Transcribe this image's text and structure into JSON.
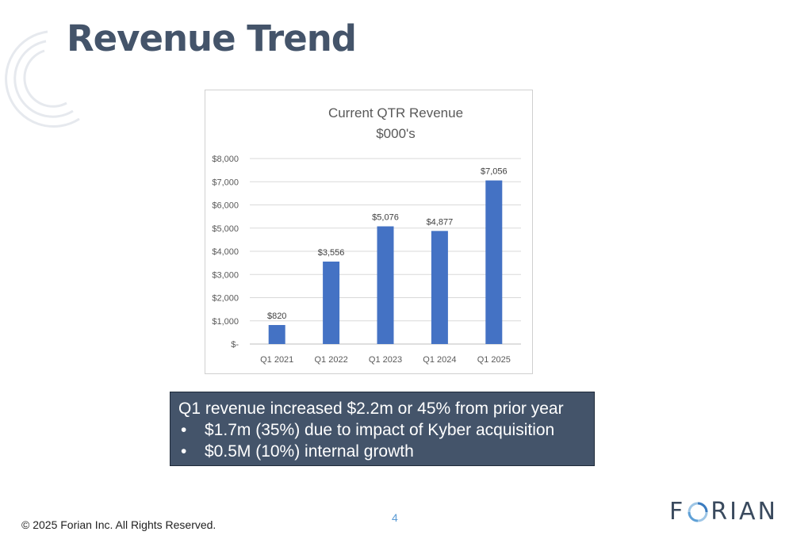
{
  "slide": {
    "title": "Revenue Trend",
    "page_number": "4",
    "copyright": "© 2025 Forian Inc.  All Rights Reserved.",
    "logo": {
      "pre": "F",
      "post": "RIAN"
    }
  },
  "callout": {
    "headline": "Q1 revenue increased $2.2m or 45% from prior year",
    "bullets": [
      "$1.7m (35%) due to impact of Kyber acquisition",
      "$0.5M (10%) internal growth"
    ]
  },
  "colors": {
    "title": "#44546a",
    "bar": "#4472c4",
    "callout_bg": "#44546a",
    "page_number": "#5b9bd5"
  },
  "chart_data": {
    "type": "bar",
    "title_lines": [
      "Current QTR Revenue",
      "$000's"
    ],
    "categories": [
      "Q1 2021",
      "Q1 2022",
      "Q1 2023",
      "Q1 2024",
      "Q1 2025"
    ],
    "values": [
      820,
      3556,
      5076,
      4877,
      7056
    ],
    "data_labels": [
      "$820",
      "$3,556",
      "$5,076",
      "$4,877",
      "$7,056"
    ],
    "y_ticks": [
      0,
      1000,
      2000,
      3000,
      4000,
      5000,
      6000,
      7000,
      8000
    ],
    "y_tick_labels": [
      "$-",
      "$1,000",
      "$2,000",
      "$3,000",
      "$4,000",
      "$5,000",
      "$6,000",
      "$7,000",
      "$8,000"
    ],
    "ylim": [
      0,
      8000
    ],
    "grid": true,
    "legend": "none"
  }
}
